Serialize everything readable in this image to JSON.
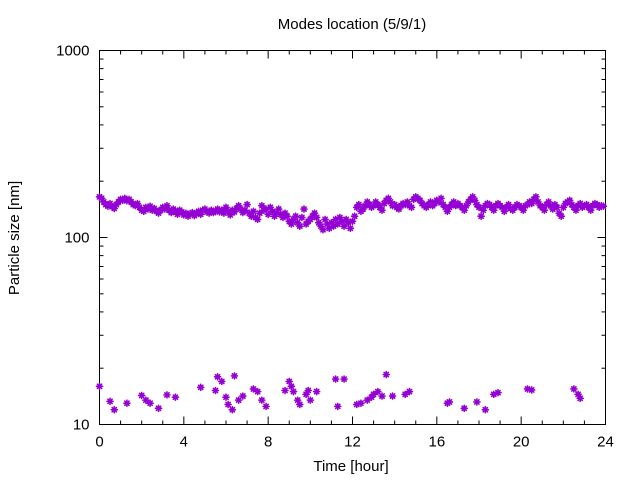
{
  "chart_data": {
    "type": "scatter",
    "title": "Modes location (5/9/1)",
    "xlabel": "Time [hour]",
    "ylabel": "Particle size [nm]",
    "xlim": [
      0,
      24
    ],
    "ylim": [
      10,
      1000
    ],
    "yscale": "log",
    "grid": false,
    "legend": "none",
    "marker_color": "#9400d3",
    "xticks": [
      0,
      4,
      8,
      12,
      16,
      20,
      24
    ],
    "yticks": [
      10,
      100,
      1000
    ],
    "series": [
      {
        "points": [
          [
            0.0,
            165
          ],
          [
            0.1,
            162
          ],
          [
            0.2,
            155
          ],
          [
            0.3,
            150
          ],
          [
            0.4,
            147
          ],
          [
            0.5,
            152
          ],
          [
            0.6,
            146
          ],
          [
            0.7,
            143
          ],
          [
            0.8,
            150
          ],
          [
            0.9,
            155
          ],
          [
            1.0,
            160
          ],
          [
            1.1,
            158
          ],
          [
            1.2,
            162
          ],
          [
            1.3,
            157
          ],
          [
            1.4,
            160
          ],
          [
            1.5,
            155
          ],
          [
            1.6,
            150
          ],
          [
            1.7,
            148
          ],
          [
            1.8,
            152
          ],
          [
            1.9,
            145
          ],
          [
            2.0,
            140
          ],
          [
            2.1,
            138
          ],
          [
            2.2,
            145
          ],
          [
            2.3,
            142
          ],
          [
            2.4,
            147
          ],
          [
            2.5,
            140
          ],
          [
            2.6,
            143
          ],
          [
            2.7,
            138
          ],
          [
            2.8,
            135
          ],
          [
            2.9,
            140
          ],
          [
            3.0,
            145
          ],
          [
            3.1,
            142
          ],
          [
            3.2,
            148
          ],
          [
            3.3,
            140
          ],
          [
            3.4,
            136
          ],
          [
            3.5,
            142
          ],
          [
            3.6,
            138
          ],
          [
            3.7,
            133
          ],
          [
            3.8,
            140
          ],
          [
            3.9,
            137
          ],
          [
            4.0,
            132
          ],
          [
            4.1,
            135
          ],
          [
            4.2,
            130
          ],
          [
            4.3,
            134
          ],
          [
            4.4,
            136
          ],
          [
            4.5,
            131
          ],
          [
            4.6,
            135
          ],
          [
            4.7,
            138
          ],
          [
            4.8,
            133
          ],
          [
            4.9,
            140
          ],
          [
            5.0,
            142
          ],
          [
            5.1,
            137
          ],
          [
            5.2,
            135
          ],
          [
            5.3,
            140
          ],
          [
            5.4,
            136
          ],
          [
            5.5,
            138
          ],
          [
            5.6,
            142
          ],
          [
            5.7,
            137
          ],
          [
            5.8,
            140
          ],
          [
            5.9,
            135
          ],
          [
            6.0,
            145
          ],
          [
            6.1,
            138
          ],
          [
            6.2,
            132
          ],
          [
            6.3,
            140
          ],
          [
            6.4,
            137
          ],
          [
            6.5,
            143
          ],
          [
            6.6,
            148
          ],
          [
            6.7,
            142
          ],
          [
            6.8,
            136
          ],
          [
            6.9,
            140
          ],
          [
            7.0,
            150
          ],
          [
            7.1,
            135
          ],
          [
            7.2,
            130
          ],
          [
            7.3,
            138
          ],
          [
            7.4,
            128
          ],
          [
            7.5,
            125
          ],
          [
            7.6,
            135
          ],
          [
            7.7,
            148
          ],
          [
            7.8,
            140
          ],
          [
            7.9,
            142
          ],
          [
            8.0,
            133
          ],
          [
            8.1,
            145
          ],
          [
            8.2,
            138
          ],
          [
            8.3,
            130
          ],
          [
            8.4,
            136
          ],
          [
            8.5,
            142
          ],
          [
            8.6,
            133
          ],
          [
            8.7,
            128
          ],
          [
            8.8,
            135
          ],
          [
            8.9,
            130
          ],
          [
            9.0,
            122
          ],
          [
            9.1,
            118
          ],
          [
            9.2,
            125
          ],
          [
            9.3,
            130
          ],
          [
            9.4,
            120
          ],
          [
            9.5,
            115
          ],
          [
            9.6,
            128
          ],
          [
            9.7,
            142
          ],
          [
            9.8,
            118
          ],
          [
            9.9,
            122
          ],
          [
            10.0,
            125
          ],
          [
            10.1,
            130
          ],
          [
            10.2,
            135
          ],
          [
            10.3,
            128
          ],
          [
            10.4,
            120
          ],
          [
            10.5,
            115
          ],
          [
            10.6,
            110
          ],
          [
            10.7,
            125
          ],
          [
            10.8,
            118
          ],
          [
            10.9,
            112
          ],
          [
            11.0,
            120
          ],
          [
            11.1,
            115
          ],
          [
            11.2,
            125
          ],
          [
            11.3,
            118
          ],
          [
            11.4,
            128
          ],
          [
            11.5,
            122
          ],
          [
            11.6,
            115
          ],
          [
            11.7,
            125
          ],
          [
            11.8,
            120
          ],
          [
            11.9,
            112
          ],
          [
            12.0,
            122
          ],
          [
            12.1,
            130
          ],
          [
            12.2,
            145
          ],
          [
            12.3,
            150
          ],
          [
            12.4,
            138
          ],
          [
            12.5,
            142
          ],
          [
            12.6,
            148
          ],
          [
            12.7,
            155
          ],
          [
            12.8,
            150
          ],
          [
            12.9,
            145
          ],
          [
            13.0,
            148
          ],
          [
            13.1,
            155
          ],
          [
            13.2,
            150
          ],
          [
            13.3,
            145
          ],
          [
            13.4,
            140
          ],
          [
            13.5,
            152
          ],
          [
            13.6,
            158
          ],
          [
            13.7,
            162
          ],
          [
            13.8,
            155
          ],
          [
            13.9,
            148
          ],
          [
            14.0,
            150
          ],
          [
            14.1,
            145
          ],
          [
            14.2,
            142
          ],
          [
            14.3,
            148
          ],
          [
            14.4,
            152
          ],
          [
            14.5,
            150
          ],
          [
            14.6,
            155
          ],
          [
            14.7,
            148
          ],
          [
            14.8,
            145
          ],
          [
            14.9,
            160
          ],
          [
            15.0,
            165
          ],
          [
            15.1,
            162
          ],
          [
            15.2,
            158
          ],
          [
            15.3,
            152
          ],
          [
            15.4,
            148
          ],
          [
            15.5,
            145
          ],
          [
            15.6,
            150
          ],
          [
            15.7,
            155
          ],
          [
            15.8,
            148
          ],
          [
            15.9,
            152
          ],
          [
            16.0,
            158
          ],
          [
            16.1,
            155
          ],
          [
            16.2,
            162
          ],
          [
            16.3,
            150
          ],
          [
            16.4,
            145
          ],
          [
            16.5,
            138
          ],
          [
            16.6,
            145
          ],
          [
            16.7,
            150
          ],
          [
            16.8,
            155
          ],
          [
            16.9,
            148
          ],
          [
            17.0,
            152
          ],
          [
            17.1,
            148
          ],
          [
            17.2,
            145
          ],
          [
            17.3,
            140
          ],
          [
            17.4,
            148
          ],
          [
            17.5,
            155
          ],
          [
            17.6,
            160
          ],
          [
            17.7,
            165
          ],
          [
            17.8,
            158
          ],
          [
            17.9,
            150
          ],
          [
            18.0,
            145
          ],
          [
            18.1,
            130
          ],
          [
            18.2,
            140
          ],
          [
            18.3,
            148
          ],
          [
            18.4,
            152
          ],
          [
            18.5,
            150
          ],
          [
            18.6,
            145
          ],
          [
            18.7,
            140
          ],
          [
            18.8,
            148
          ],
          [
            18.9,
            152
          ],
          [
            19.0,
            148
          ],
          [
            19.1,
            145
          ],
          [
            19.2,
            138
          ],
          [
            19.3,
            145
          ],
          [
            19.4,
            150
          ],
          [
            19.5,
            143
          ],
          [
            19.6,
            140
          ],
          [
            19.7,
            145
          ],
          [
            19.8,
            150
          ],
          [
            19.9,
            148
          ],
          [
            20.0,
            145
          ],
          [
            20.1,
            140
          ],
          [
            20.2,
            148
          ],
          [
            20.3,
            150
          ],
          [
            20.4,
            155
          ],
          [
            20.5,
            152
          ],
          [
            20.6,
            160
          ],
          [
            20.7,
            165
          ],
          [
            20.8,
            155
          ],
          [
            20.9,
            148
          ],
          [
            21.0,
            145
          ],
          [
            21.1,
            140
          ],
          [
            21.2,
            150
          ],
          [
            21.3,
            155
          ],
          [
            21.4,
            148
          ],
          [
            21.5,
            142
          ],
          [
            21.6,
            150
          ],
          [
            21.7,
            145
          ],
          [
            21.8,
            135
          ],
          [
            21.9,
            130
          ],
          [
            22.0,
            145
          ],
          [
            22.1,
            152
          ],
          [
            22.2,
            155
          ],
          [
            22.3,
            158
          ],
          [
            22.4,
            150
          ],
          [
            22.5,
            145
          ],
          [
            22.6,
            140
          ],
          [
            22.7,
            148
          ],
          [
            22.8,
            152
          ],
          [
            22.9,
            145
          ],
          [
            23.0,
            148
          ],
          [
            23.1,
            150
          ],
          [
            23.2,
            145
          ],
          [
            23.3,
            140
          ],
          [
            23.4,
            148
          ],
          [
            23.5,
            152
          ],
          [
            23.6,
            150
          ],
          [
            23.7,
            145
          ],
          [
            23.8,
            148
          ],
          [
            23.9,
            147
          ],
          [
            0.0,
            16.0
          ],
          [
            0.5,
            13.3
          ],
          [
            0.7,
            12.0
          ],
          [
            1.3,
            13.0
          ],
          [
            2.0,
            14.3
          ],
          [
            2.2,
            13.5
          ],
          [
            2.4,
            13.0
          ],
          [
            2.8,
            12.2
          ],
          [
            3.2,
            14.4
          ],
          [
            3.6,
            14.0
          ],
          [
            4.8,
            15.8
          ],
          [
            5.5,
            15.2
          ],
          [
            5.6,
            18.0
          ],
          [
            5.8,
            17.0
          ],
          [
            6.0,
            14.0
          ],
          [
            6.1,
            12.8
          ],
          [
            6.3,
            12.0
          ],
          [
            6.4,
            18.2
          ],
          [
            6.6,
            13.5
          ],
          [
            6.8,
            14.2
          ],
          [
            7.3,
            15.5
          ],
          [
            7.5,
            15.0
          ],
          [
            7.7,
            13.5
          ],
          [
            7.9,
            12.5
          ],
          [
            8.8,
            15.2
          ],
          [
            9.0,
            17.0
          ],
          [
            9.1,
            16.0
          ],
          [
            9.2,
            15.0
          ],
          [
            9.4,
            13.5
          ],
          [
            9.5,
            12.8
          ],
          [
            9.8,
            14.5
          ],
          [
            9.9,
            15.2
          ],
          [
            10.0,
            13.5
          ],
          [
            10.3,
            15.0
          ],
          [
            11.2,
            17.5
          ],
          [
            11.3,
            12.5
          ],
          [
            11.6,
            17.5
          ],
          [
            12.2,
            12.8
          ],
          [
            12.4,
            13.0
          ],
          [
            12.7,
            13.5
          ],
          [
            12.9,
            14.0
          ],
          [
            13.0,
            14.5
          ],
          [
            13.2,
            15.0
          ],
          [
            13.4,
            14.2
          ],
          [
            13.6,
            18.5
          ],
          [
            13.9,
            14.2
          ],
          [
            14.5,
            14.5
          ],
          [
            14.7,
            15.0
          ],
          [
            16.5,
            13.0
          ],
          [
            16.6,
            13.2
          ],
          [
            17.3,
            12.2
          ],
          [
            17.9,
            13.2
          ],
          [
            18.3,
            12.0
          ],
          [
            18.7,
            14.5
          ],
          [
            18.9,
            14.8
          ],
          [
            20.3,
            15.5
          ],
          [
            20.5,
            15.3
          ],
          [
            22.5,
            15.5
          ],
          [
            22.7,
            14.5
          ],
          [
            22.8,
            13.8
          ]
        ]
      }
    ]
  }
}
